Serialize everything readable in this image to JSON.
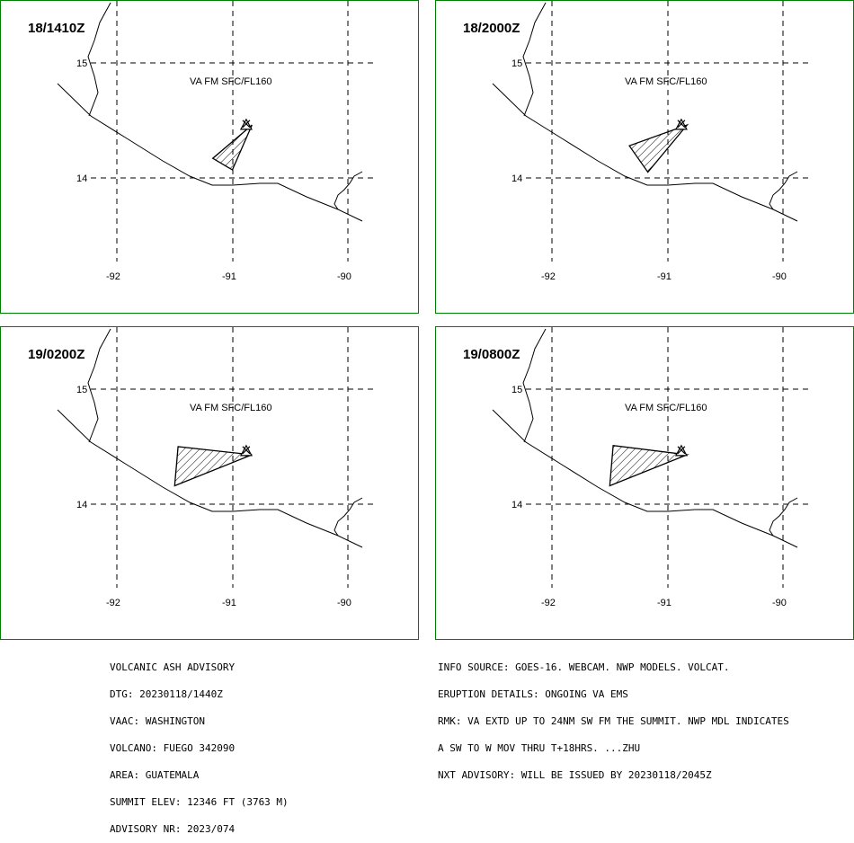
{
  "panels": [
    {
      "title": "18/1410Z",
      "label": "VA FM SFC/FL160",
      "lat_labels": [
        "15",
        "14"
      ],
      "lon_labels": [
        "-92",
        "-91",
        "-90"
      ],
      "ash_polygon": [
        [
          -90.83,
          14.46
        ],
        [
          -91.17,
          14.17
        ],
        [
          -91.0,
          14.07
        ]
      ]
    },
    {
      "title": "18/2000Z",
      "label": "VA FM SFC/FL160",
      "lat_labels": [
        "15",
        "14"
      ],
      "lon_labels": [
        "-92",
        "-91",
        "-90"
      ],
      "ash_polygon": [
        [
          -90.83,
          14.46
        ],
        [
          -91.33,
          14.28
        ],
        [
          -91.17,
          14.05
        ]
      ]
    },
    {
      "title": "19/0200Z",
      "label": "VA FM SFC/FL160",
      "lat_labels": [
        "15",
        "14"
      ],
      "lon_labels": [
        "-92",
        "-91",
        "-90"
      ],
      "ash_polygon": [
        [
          -90.83,
          14.43
        ],
        [
          -91.47,
          14.5
        ],
        [
          -91.5,
          14.16
        ]
      ]
    },
    {
      "title": "19/0800Z",
      "label": "VA FM SFC/FL160",
      "lat_labels": [
        "15",
        "14"
      ],
      "lon_labels": [
        "-92",
        "-91",
        "-90"
      ],
      "ash_polygon": [
        [
          -90.83,
          14.43
        ],
        [
          -91.47,
          14.51
        ],
        [
          -91.5,
          14.16
        ]
      ]
    }
  ],
  "volcano": {
    "name": "FUEGO",
    "lat": 14.47,
    "lon": -90.88
  },
  "advisory_left": [
    "VOLCANIC ASH ADVISORY",
    "DTG: 20230118/1440Z",
    "VAAC: WASHINGTON",
    "VOLCANO: FUEGO 342090",
    "AREA: GUATEMALA",
    "SUMMIT ELEV: 12346 FT (3763 M)",
    "ADVISORY NR: 2023/074"
  ],
  "advisory_right": [
    "INFO SOURCE: GOES-16. WEBCAM. NWP MODELS. VOLCAT.",
    "ERUPTION DETAILS: ONGOING VA EMS",
    "RMK: VA EXTD UP TO 24NM SW FM THE SUMMIT. NWP MDL INDICATES",
    "A SW TO W MOV THRU T+18HRS. ...ZHU",
    "NXT ADVISORY: WILL BE ISSUED BY 20230118/2045Z"
  ]
}
